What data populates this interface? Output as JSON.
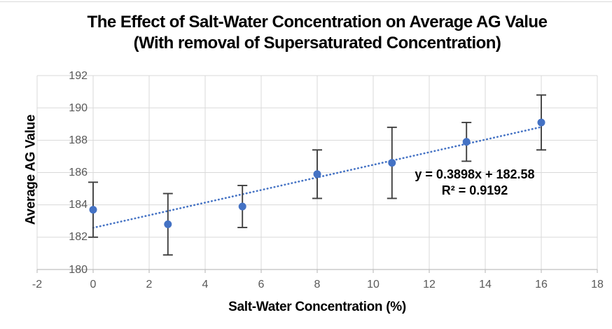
{
  "chart_data": {
    "type": "scatter",
    "title_line1": "The Effect of Salt-Water Concentration on Average AG Value",
    "title_line2": "(With removal of Supersaturated Concentration)",
    "xlabel": "Salt-Water Concentration (%)",
    "ylabel": "Average AG Value",
    "x": [
      0,
      2.67,
      5.33,
      8,
      10.67,
      13.33,
      16
    ],
    "y": [
      183.7,
      182.8,
      183.9,
      185.9,
      186.6,
      187.9,
      189.1
    ],
    "y_error": [
      1.7,
      1.9,
      1.3,
      1.5,
      2.2,
      1.2,
      1.7
    ],
    "xlim": [
      -2,
      18
    ],
    "ylim": [
      180,
      192
    ],
    "x_ticks": [
      -2,
      0,
      2,
      4,
      6,
      8,
      10,
      12,
      14,
      16,
      18
    ],
    "y_ticks": [
      180,
      182,
      184,
      186,
      188,
      190,
      192
    ],
    "grid": true,
    "legend": "none",
    "marker": "circle",
    "trendline": {
      "slope": 0.3898,
      "intercept": 182.58,
      "x_start": 0,
      "x_end": 16,
      "style": "dotted",
      "equation_label": "y = 0.3898x + 182.58",
      "r_squared_label": "R² = 0.9192"
    },
    "colors": {
      "point": "#4472C4",
      "trendline": "#4472C4",
      "error_bar": "#404040",
      "gridline": "#D9D9D9",
      "axis_line": "#BFBFBF",
      "tick_label": "#595959",
      "title": "#000000"
    }
  }
}
